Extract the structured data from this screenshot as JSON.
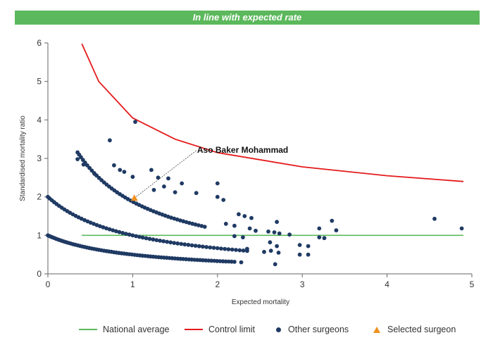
{
  "banner": {
    "text": "In line with expected rate",
    "color": "#5cb85c"
  },
  "chart_data": {
    "type": "scatter",
    "title": "",
    "xlabel": "Expected mortality",
    "ylabel": "Standardised mortality ratio",
    "xlim": [
      0,
      5
    ],
    "ylim": [
      0,
      6
    ],
    "xticks": [
      "0",
      "1",
      "2",
      "3",
      "4",
      "5"
    ],
    "yticks": [
      "0",
      "1",
      "2",
      "3",
      "4",
      "5",
      "6"
    ],
    "grid": false,
    "legend_position": "bottom",
    "national_average": {
      "name": "National average",
      "color": "#5cb85c",
      "y": 1,
      "x_range": [
        0.4,
        4.9
      ]
    },
    "control_limit": {
      "name": "Control limit",
      "color": "#e41a1c",
      "x_range": [
        0.4,
        4.9
      ],
      "points": [
        [
          0.4,
          5.98
        ],
        [
          0.6,
          5.0
        ],
        [
          1.0,
          4.05
        ],
        [
          1.5,
          3.5
        ],
        [
          2.0,
          3.15
        ],
        [
          3.0,
          2.78
        ],
        [
          4.0,
          2.55
        ],
        [
          4.9,
          2.4
        ]
      ]
    },
    "other_surgeons": {
      "name": "Other surgeons",
      "color": "#1f3a63",
      "curves": [
        {
          "numerator": 1,
          "x_range": [
            0.0,
            2.2
          ],
          "count": 75
        },
        {
          "numerator": 2,
          "x_range": [
            0.0,
            2.35
          ],
          "count": 62
        },
        {
          "numerator": 3,
          "x_range": [
            0.35,
            1.85
          ],
          "count": 48
        }
      ],
      "points": [
        [
          1.03,
          3.95
        ],
        [
          0.73,
          3.47
        ],
        [
          0.35,
          2.98
        ],
        [
          0.42,
          2.84
        ],
        [
          0.55,
          2.6
        ],
        [
          0.78,
          2.82
        ],
        [
          0.85,
          2.7
        ],
        [
          0.9,
          2.65
        ],
        [
          1.0,
          2.52
        ],
        [
          1.22,
          2.7
        ],
        [
          1.3,
          2.5
        ],
        [
          1.42,
          2.48
        ],
        [
          1.58,
          2.35
        ],
        [
          1.25,
          2.18
        ],
        [
          1.37,
          2.27
        ],
        [
          1.5,
          2.12
        ],
        [
          1.75,
          2.1
        ],
        [
          2.0,
          2.35
        ],
        [
          2.0,
          2.0
        ],
        [
          2.07,
          1.92
        ],
        [
          2.25,
          1.55
        ],
        [
          2.32,
          1.5
        ],
        [
          2.4,
          1.45
        ],
        [
          2.1,
          1.3
        ],
        [
          2.2,
          1.25
        ],
        [
          2.38,
          1.18
        ],
        [
          2.45,
          1.12
        ],
        [
          2.6,
          1.1
        ],
        [
          2.67,
          1.08
        ],
        [
          2.7,
          1.35
        ],
        [
          2.73,
          1.05
        ],
        [
          2.85,
          1.02
        ],
        [
          2.2,
          0.98
        ],
        [
          2.3,
          0.95
        ],
        [
          2.62,
          0.82
        ],
        [
          2.7,
          0.72
        ],
        [
          2.97,
          0.75
        ],
        [
          3.07,
          0.72
        ],
        [
          2.97,
          0.5
        ],
        [
          3.07,
          0.5
        ],
        [
          3.2,
          1.18
        ],
        [
          3.2,
          0.95
        ],
        [
          3.26,
          0.93
        ],
        [
          3.35,
          1.38
        ],
        [
          3.4,
          1.13
        ],
        [
          4.56,
          1.43
        ],
        [
          4.88,
          1.18
        ],
        [
          2.63,
          0.6
        ],
        [
          2.72,
          0.55
        ],
        [
          2.68,
          0.25
        ],
        [
          2.55,
          0.57
        ],
        [
          2.35,
          0.65
        ],
        [
          2.28,
          0.3
        ]
      ]
    },
    "selected_surgeon": {
      "name": "Selected surgeon",
      "label": "Aso Baker Mohammad",
      "color": "#f0901e",
      "x": 1.02,
      "y": 1.97
    }
  },
  "legend": {
    "national_average": "National average",
    "control_limit": "Control limit",
    "other_surgeons": "Other surgeons",
    "selected_surgeon": "Selected surgeon"
  }
}
